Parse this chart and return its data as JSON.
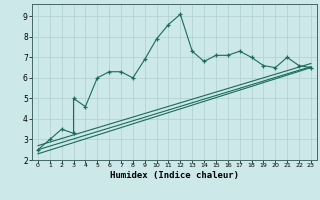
{
  "xlabel": "Humidex (Indice chaleur)",
  "bg_color": "#cce8e8",
  "line_color": "#1a6b5a",
  "grid_color": "#aed0d0",
  "xlim": [
    -0.5,
    23.5
  ],
  "ylim": [
    2,
    9.6
  ],
  "xticks": [
    0,
    1,
    2,
    3,
    4,
    5,
    6,
    7,
    8,
    9,
    10,
    11,
    12,
    13,
    14,
    15,
    16,
    17,
    18,
    19,
    20,
    21,
    22,
    23
  ],
  "yticks": [
    2,
    3,
    4,
    5,
    6,
    7,
    8,
    9
  ],
  "line1_x": [
    0,
    1,
    2,
    3,
    3,
    4,
    5,
    6,
    7,
    8,
    9,
    10,
    11,
    12,
    13,
    14,
    15,
    16,
    17,
    18,
    19,
    20,
    21,
    22,
    23
  ],
  "line1_y": [
    2.5,
    3.0,
    3.5,
    3.3,
    5.0,
    4.6,
    6.0,
    6.3,
    6.3,
    6.0,
    6.9,
    7.9,
    8.6,
    9.1,
    7.3,
    6.8,
    7.1,
    7.1,
    7.3,
    7.0,
    6.6,
    6.5,
    7.0,
    6.6,
    6.5
  ],
  "line2_x": [
    0,
    23
  ],
  "line2_y": [
    2.7,
    6.7
  ],
  "line3_x": [
    0,
    23
  ],
  "line3_y": [
    2.5,
    6.55
  ],
  "line4_x": [
    0,
    23
  ],
  "line4_y": [
    2.3,
    6.5
  ]
}
